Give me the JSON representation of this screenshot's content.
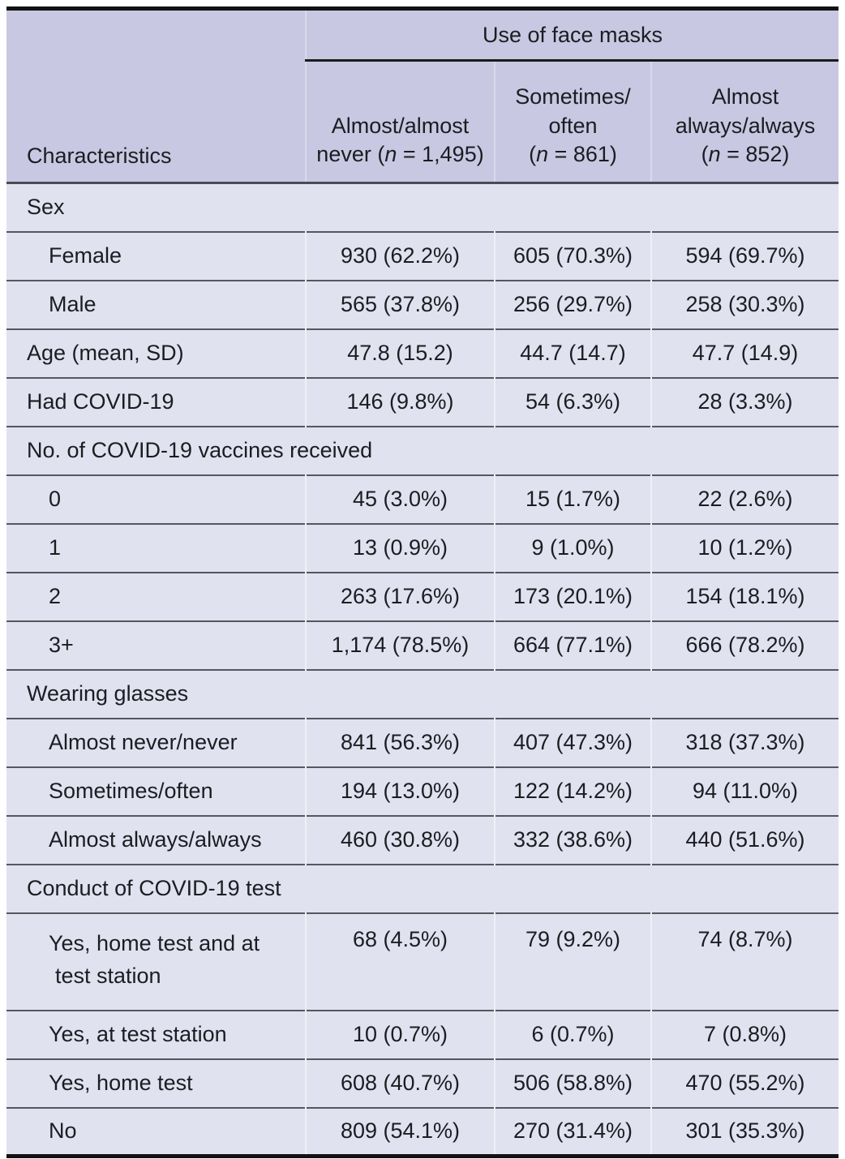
{
  "table": {
    "stub_header": "Characteristics",
    "spanner": "Use of face masks",
    "columns": [
      {
        "line1": "Almost/almost",
        "line2_pre": "never (",
        "n_var": "n",
        "line2_post": " = 1,495)"
      },
      {
        "line1": "Sometimes/",
        "line2": "often",
        "line3_pre": "(",
        "n_var": "n",
        "line3_post": " = 861)"
      },
      {
        "line1": "Almost",
        "line2": "always/always",
        "line3_pre": "(",
        "n_var": "n",
        "line3_post": " = 852)"
      }
    ],
    "rows": [
      {
        "label": "Sex",
        "section": true
      },
      {
        "label": "Female",
        "indent": true,
        "values": [
          "930 (62.2%)",
          "605 (70.3%)",
          "594 (69.7%)"
        ]
      },
      {
        "label": "Male",
        "indent": true,
        "values": [
          "565 (37.8%)",
          "256 (29.7%)",
          "258 (30.3%)"
        ]
      },
      {
        "label": "Age (mean, SD)",
        "indent": false,
        "values": [
          "47.8 (15.2)",
          "44.7 (14.7)",
          "47.7 (14.9)"
        ]
      },
      {
        "label": "Had COVID-19",
        "indent": false,
        "values": [
          "146 (9.8%)",
          "54 (6.3%)",
          "28 (3.3%)"
        ]
      },
      {
        "label": "No. of COVID-19 vaccines received",
        "section": true
      },
      {
        "label": "0",
        "indent": true,
        "values": [
          "45 (3.0%)",
          "15 (1.7%)",
          "22 (2.6%)"
        ]
      },
      {
        "label": "1",
        "indent": true,
        "values": [
          "13 (0.9%)",
          "9 (1.0%)",
          "10 (1.2%)"
        ]
      },
      {
        "label": "2",
        "indent": true,
        "values": [
          "263 (17.6%)",
          "173 (20.1%)",
          "154 (18.1%)"
        ]
      },
      {
        "label": "3+",
        "indent": true,
        "values": [
          "1,174 (78.5%)",
          "664 (77.1%)",
          "666 (78.2%)"
        ]
      },
      {
        "label": "Wearing glasses",
        "section": true
      },
      {
        "label": "Almost never/never",
        "indent": true,
        "values": [
          "841 (56.3%)",
          "407 (47.3%)",
          "318 (37.3%)"
        ]
      },
      {
        "label": "Sometimes/often",
        "indent": true,
        "values": [
          "194 (13.0%)",
          "122 (14.2%)",
          "94 (11.0%)"
        ]
      },
      {
        "label": "Almost always/always",
        "indent": true,
        "values": [
          "460 (30.8%)",
          "332 (38.6%)",
          "440 (51.6%)"
        ]
      },
      {
        "label": "Conduct of COVID-19 test",
        "section": true
      },
      {
        "label": "Yes, home test and at test station",
        "indent": true,
        "tall": true,
        "values": [
          "68 (4.5%)",
          "79 (9.2%)",
          "74 (8.7%)"
        ]
      },
      {
        "label": "Yes, at test station",
        "indent": true,
        "values": [
          "10 (0.7%)",
          "6 (0.7%)",
          "7 (0.8%)"
        ]
      },
      {
        "label": "Yes, home test",
        "indent": true,
        "values": [
          "608 (40.7%)",
          "506 (58.8%)",
          "470 (55.2%)"
        ]
      },
      {
        "label": "No",
        "indent": true,
        "values": [
          "809 (54.1%)",
          "270 (31.4%)",
          "301 (35.3%)"
        ]
      }
    ]
  },
  "colors": {
    "header_bg": "#c8c8e2",
    "body_bg": "#e1e2ef",
    "row_line": "#56565f",
    "outer_border": "#121212",
    "column_divider": "#eef0f8",
    "text": "#1c1c22"
  },
  "chart_data": {
    "type": "table",
    "title": "Use of face masks",
    "columns": [
      "Characteristics",
      "Almost/almost never (n = 1,495)",
      "Sometimes/often (n = 861)",
      "Almost always/always (n = 852)"
    ],
    "rows": [
      [
        "Sex",
        "",
        "",
        ""
      ],
      [
        "Female",
        "930 (62.2%)",
        "605 (70.3%)",
        "594 (69.7%)"
      ],
      [
        "Male",
        "565 (37.8%)",
        "256 (29.7%)",
        "258 (30.3%)"
      ],
      [
        "Age (mean, SD)",
        "47.8 (15.2)",
        "44.7 (14.7)",
        "47.7 (14.9)"
      ],
      [
        "Had COVID-19",
        "146 (9.8%)",
        "54 (6.3%)",
        "28 (3.3%)"
      ],
      [
        "No. of COVID-19 vaccines received",
        "",
        "",
        ""
      ],
      [
        "0",
        "45 (3.0%)",
        "15 (1.7%)",
        "22 (2.6%)"
      ],
      [
        "1",
        "13 (0.9%)",
        "9 (1.0%)",
        "10 (1.2%)"
      ],
      [
        "2",
        "263 (17.6%)",
        "173 (20.1%)",
        "154 (18.1%)"
      ],
      [
        "3+",
        "1,174 (78.5%)",
        "664 (77.1%)",
        "666 (78.2%)"
      ],
      [
        "Wearing glasses",
        "",
        "",
        ""
      ],
      [
        "Almost never/never",
        "841 (56.3%)",
        "407 (47.3%)",
        "318 (37.3%)"
      ],
      [
        "Sometimes/often",
        "194 (13.0%)",
        "122 (14.2%)",
        "94 (11.0%)"
      ],
      [
        "Almost always/always",
        "460 (30.8%)",
        "332 (38.6%)",
        "440 (51.6%)"
      ],
      [
        "Conduct of COVID-19 test",
        "",
        "",
        ""
      ],
      [
        "Yes, home test and at test station",
        "68 (4.5%)",
        "79 (9.2%)",
        "74 (8.7%)"
      ],
      [
        "Yes, at test station",
        "10 (0.7%)",
        "6 (0.7%)",
        "7 (0.8%)"
      ],
      [
        "Yes, home test",
        "608 (40.7%)",
        "506 (58.8%)",
        "470 (55.2%)"
      ],
      [
        "No",
        "809 (54.1%)",
        "270 (31.4%)",
        "301 (35.3%)"
      ]
    ]
  }
}
